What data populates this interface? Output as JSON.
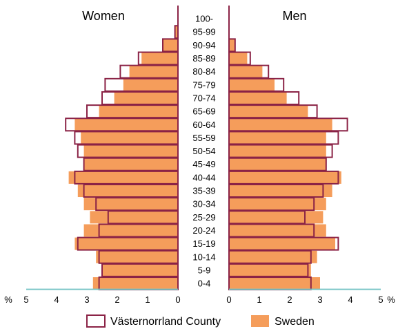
{
  "chart_data": {
    "type": "bar",
    "orientation": "population-pyramid",
    "left_title": "Women",
    "right_title": "Men",
    "categories": [
      "0-4",
      "5-9",
      "10-14",
      "15-19",
      "20-24",
      "25-29",
      "30-34",
      "35-39",
      "40-44",
      "45-49",
      "50-54",
      "55-59",
      "60-64",
      "65-69",
      "70-74",
      "75-79",
      "80-84",
      "85-89",
      "90-94",
      "95-99",
      "100-"
    ],
    "series": [
      {
        "name": "Sweden",
        "style": "filled",
        "color": "#f59d5b",
        "women": [
          2.8,
          2.5,
          2.7,
          3.4,
          3.1,
          2.9,
          3.1,
          3.3,
          3.6,
          3.1,
          3.1,
          3.2,
          3.4,
          2.6,
          2.1,
          1.8,
          1.6,
          1.2,
          0.5,
          0.1,
          0.0
        ],
        "men": [
          3.0,
          2.7,
          2.9,
          3.5,
          3.2,
          3.1,
          3.2,
          3.4,
          3.7,
          3.2,
          3.2,
          3.2,
          3.4,
          2.6,
          1.9,
          1.5,
          1.1,
          0.6,
          0.2,
          0.0,
          0.0
        ]
      },
      {
        "name": "Västernorrland County",
        "style": "outline",
        "color": "#8b2346",
        "women": [
          2.6,
          2.5,
          2.6,
          3.3,
          2.6,
          2.3,
          2.7,
          3.1,
          3.4,
          3.1,
          3.3,
          3.4,
          3.7,
          3.0,
          2.5,
          2.4,
          1.9,
          1.3,
          0.5,
          0.1,
          0.0
        ],
        "men": [
          2.7,
          2.6,
          2.7,
          3.6,
          2.8,
          2.5,
          2.8,
          3.1,
          3.6,
          3.2,
          3.4,
          3.6,
          3.9,
          2.9,
          2.3,
          1.8,
          1.3,
          0.7,
          0.2,
          0.0,
          0.0
        ]
      }
    ],
    "x_ticks": [
      "5",
      "4",
      "3",
      "2",
      "1",
      "0"
    ],
    "x_ticks_right": [
      "0",
      "1",
      "2",
      "3",
      "4",
      "5"
    ],
    "xlim": [
      0,
      5
    ],
    "unit_label": "%",
    "grid": false,
    "legend_position": "bottom"
  }
}
